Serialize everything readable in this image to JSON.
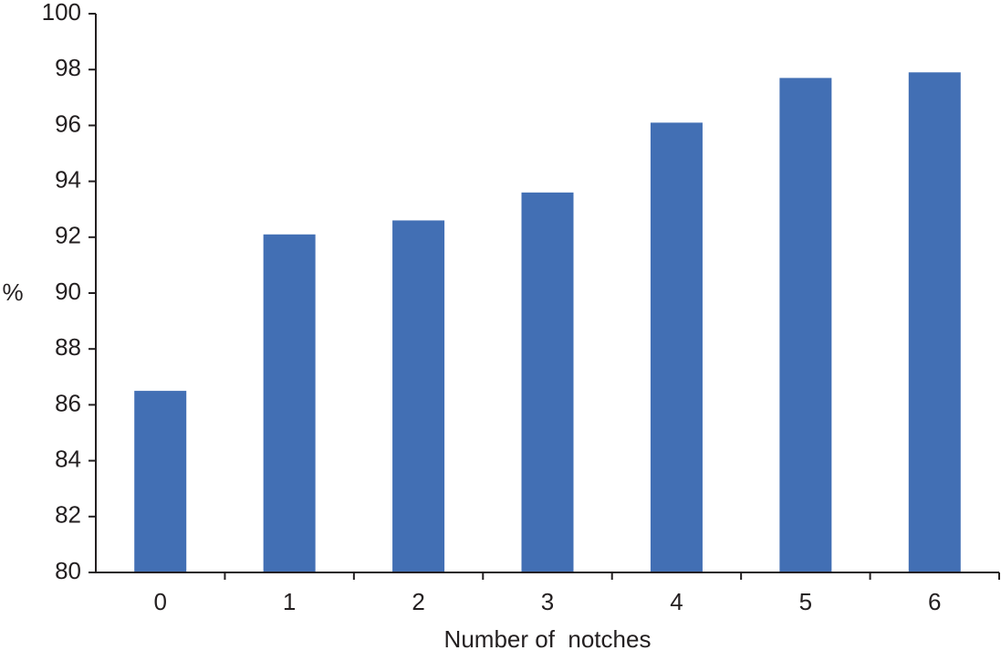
{
  "chart_data": {
    "type": "bar",
    "x_label": "Number of  notches",
    "y_label": "%",
    "categories": [
      "0",
      "1",
      "2",
      "3",
      "4",
      "5",
      "6"
    ],
    "values": [
      86.5,
      92.1,
      92.6,
      93.6,
      96.1,
      97.7,
      97.9
    ],
    "color": "#426fb4",
    "ylim": [
      80,
      100
    ],
    "yticks": [
      80,
      82,
      84,
      86,
      88,
      90,
      92,
      94,
      96,
      98,
      100
    ],
    "grid": false
  }
}
